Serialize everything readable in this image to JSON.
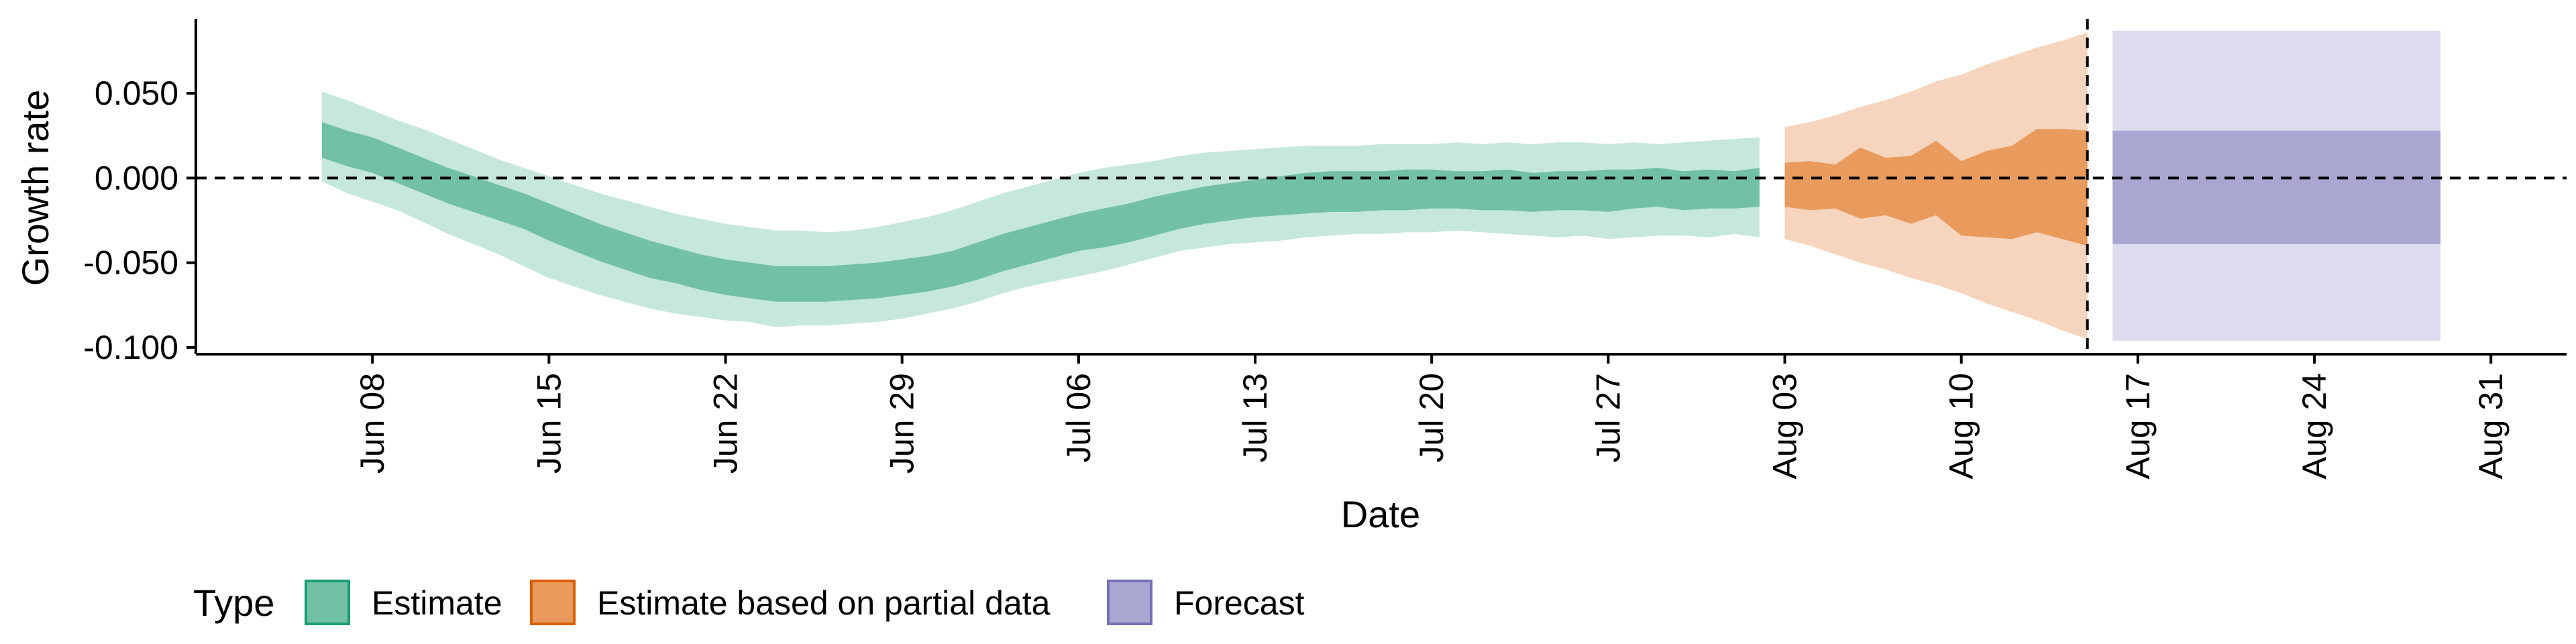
{
  "chart_data": {
    "type": "area",
    "title": "",
    "xlabel": "Date",
    "ylabel": "Growth rate",
    "x_range": [
      "2020-06-01",
      "2020-09-03"
    ],
    "y_range": [
      -0.104,
      0.094
    ],
    "x_ticks": [
      {
        "date": "2020-06-08",
        "label": "Jun 08"
      },
      {
        "date": "2020-06-15",
        "label": "Jun 15"
      },
      {
        "date": "2020-06-22",
        "label": "Jun 22"
      },
      {
        "date": "2020-06-29",
        "label": "Jun 29"
      },
      {
        "date": "2020-07-06",
        "label": "Jul 06"
      },
      {
        "date": "2020-07-13",
        "label": "Jul 13"
      },
      {
        "date": "2020-07-20",
        "label": "Jul 20"
      },
      {
        "date": "2020-07-27",
        "label": "Jul 27"
      },
      {
        "date": "2020-08-03",
        "label": "Aug 03"
      },
      {
        "date": "2020-08-10",
        "label": "Aug 10"
      },
      {
        "date": "2020-08-17",
        "label": "Aug 17"
      },
      {
        "date": "2020-08-24",
        "label": "Aug 24"
      },
      {
        "date": "2020-08-31",
        "label": "Aug 31"
      }
    ],
    "y_ticks": [
      {
        "value": 0.05,
        "label": "0.050"
      },
      {
        "value": 0.0,
        "label": "0.000"
      },
      {
        "value": -0.05,
        "label": "-0.050"
      },
      {
        "value": -0.1,
        "label": "-0.100"
      }
    ],
    "reference_lines": {
      "horizontal_y": 0.0,
      "vertical_date": "2020-08-15",
      "style": "dashed"
    },
    "grid": false,
    "legend": {
      "title": "Type",
      "position": "bottom",
      "entries": [
        {
          "label": "Estimate",
          "fill": "#72c1a5",
          "stroke": "#1b9e77"
        },
        {
          "label": "Estimate based on partial data",
          "fill": "#e99b5e",
          "stroke": "#d95f02"
        },
        {
          "label": "Forecast",
          "fill": "#a9a6d1",
          "stroke": "#7570b3"
        }
      ]
    },
    "series": [
      {
        "name": "Estimate",
        "outer_color": "#c6e7dc",
        "inner_color": "#72c1a5",
        "x": [
          "2020-06-06",
          "2020-06-07",
          "2020-06-08",
          "2020-06-09",
          "2020-06-10",
          "2020-06-11",
          "2020-06-12",
          "2020-06-13",
          "2020-06-14",
          "2020-06-15",
          "2020-06-16",
          "2020-06-17",
          "2020-06-18",
          "2020-06-19",
          "2020-06-20",
          "2020-06-21",
          "2020-06-22",
          "2020-06-23",
          "2020-06-24",
          "2020-06-25",
          "2020-06-26",
          "2020-06-27",
          "2020-06-28",
          "2020-06-29",
          "2020-06-30",
          "2020-07-01",
          "2020-07-02",
          "2020-07-03",
          "2020-07-04",
          "2020-07-05",
          "2020-07-06",
          "2020-07-07",
          "2020-07-08",
          "2020-07-09",
          "2020-07-10",
          "2020-07-11",
          "2020-07-12",
          "2020-07-13",
          "2020-07-14",
          "2020-07-15",
          "2020-07-16",
          "2020-07-17",
          "2020-07-18",
          "2020-07-19",
          "2020-07-20",
          "2020-07-21",
          "2020-07-22",
          "2020-07-23",
          "2020-07-24",
          "2020-07-25",
          "2020-07-26",
          "2020-07-27",
          "2020-07-28",
          "2020-07-29",
          "2020-07-30",
          "2020-07-31",
          "2020-08-01",
          "2020-08-02"
        ],
        "lower_90": [
          -0.002,
          -0.009,
          -0.014,
          -0.019,
          -0.026,
          -0.033,
          -0.039,
          -0.045,
          -0.052,
          -0.059,
          -0.064,
          -0.069,
          -0.073,
          -0.077,
          -0.08,
          -0.082,
          -0.084,
          -0.085,
          -0.088,
          -0.087,
          -0.087,
          -0.086,
          -0.085,
          -0.083,
          -0.08,
          -0.077,
          -0.073,
          -0.068,
          -0.064,
          -0.061,
          -0.058,
          -0.055,
          -0.051,
          -0.047,
          -0.043,
          -0.041,
          -0.039,
          -0.038,
          -0.037,
          -0.035,
          -0.034,
          -0.033,
          -0.033,
          -0.032,
          -0.032,
          -0.031,
          -0.032,
          -0.033,
          -0.034,
          -0.035,
          -0.034,
          -0.036,
          -0.035,
          -0.034,
          -0.034,
          -0.035,
          -0.033,
          -0.035
        ],
        "lower_50": [
          0.012,
          0.007,
          0.003,
          -0.003,
          -0.009,
          -0.015,
          -0.02,
          -0.025,
          -0.03,
          -0.037,
          -0.043,
          -0.049,
          -0.054,
          -0.059,
          -0.062,
          -0.066,
          -0.069,
          -0.071,
          -0.073,
          -0.073,
          -0.073,
          -0.072,
          -0.071,
          -0.069,
          -0.067,
          -0.064,
          -0.06,
          -0.055,
          -0.051,
          -0.047,
          -0.043,
          -0.041,
          -0.038,
          -0.034,
          -0.03,
          -0.027,
          -0.025,
          -0.023,
          -0.022,
          -0.021,
          -0.02,
          -0.02,
          -0.019,
          -0.019,
          -0.018,
          -0.018,
          -0.019,
          -0.019,
          -0.02,
          -0.019,
          -0.019,
          -0.02,
          -0.018,
          -0.017,
          -0.019,
          -0.018,
          -0.018,
          -0.017
        ],
        "upper_50": [
          0.033,
          0.028,
          0.024,
          0.018,
          0.012,
          0.006,
          0.001,
          -0.004,
          -0.009,
          -0.015,
          -0.021,
          -0.027,
          -0.032,
          -0.037,
          -0.041,
          -0.045,
          -0.048,
          -0.05,
          -0.052,
          -0.052,
          -0.052,
          -0.051,
          -0.05,
          -0.048,
          -0.046,
          -0.043,
          -0.038,
          -0.033,
          -0.029,
          -0.025,
          -0.021,
          -0.018,
          -0.015,
          -0.011,
          -0.008,
          -0.005,
          -0.003,
          -0.001,
          0.001,
          0.003,
          0.004,
          0.004,
          0.004,
          0.005,
          0.005,
          0.004,
          0.004,
          0.005,
          0.003,
          0.004,
          0.004,
          0.005,
          0.005,
          0.006,
          0.004,
          0.005,
          0.004,
          0.006
        ],
        "upper_90": [
          0.051,
          0.046,
          0.04,
          0.034,
          0.029,
          0.023,
          0.017,
          0.011,
          0.006,
          0.001,
          -0.004,
          -0.009,
          -0.013,
          -0.017,
          -0.021,
          -0.024,
          -0.027,
          -0.029,
          -0.031,
          -0.031,
          -0.032,
          -0.031,
          -0.029,
          -0.026,
          -0.023,
          -0.019,
          -0.014,
          -0.009,
          -0.005,
          -0.001,
          0.003,
          0.006,
          0.008,
          0.01,
          0.013,
          0.015,
          0.016,
          0.017,
          0.018,
          0.019,
          0.019,
          0.019,
          0.02,
          0.02,
          0.02,
          0.021,
          0.02,
          0.021,
          0.02,
          0.021,
          0.021,
          0.02,
          0.021,
          0.02,
          0.021,
          0.022,
          0.023,
          0.024
        ]
      },
      {
        "name": "Estimate based on partial data",
        "outer_color": "#f5d5bd",
        "inner_color": "#e99b5e",
        "x": [
          "2020-08-03",
          "2020-08-04",
          "2020-08-05",
          "2020-08-06",
          "2020-08-07",
          "2020-08-08",
          "2020-08-09",
          "2020-08-10",
          "2020-08-11",
          "2020-08-12",
          "2020-08-13",
          "2020-08-14",
          "2020-08-15"
        ],
        "lower_90": [
          -0.036,
          -0.04,
          -0.045,
          -0.05,
          -0.054,
          -0.059,
          -0.063,
          -0.068,
          -0.074,
          -0.079,
          -0.084,
          -0.09,
          -0.095
        ],
        "lower_50": [
          -0.017,
          -0.019,
          -0.018,
          -0.024,
          -0.022,
          -0.027,
          -0.022,
          -0.034,
          -0.035,
          -0.036,
          -0.032,
          -0.036,
          -0.04
        ],
        "upper_50": [
          0.009,
          0.01,
          0.008,
          0.018,
          0.012,
          0.013,
          0.022,
          0.01,
          0.016,
          0.019,
          0.029,
          0.029,
          0.028
        ],
        "upper_90": [
          0.03,
          0.033,
          0.037,
          0.042,
          0.046,
          0.051,
          0.057,
          0.061,
          0.067,
          0.072,
          0.077,
          0.081,
          0.086
        ]
      },
      {
        "name": "Forecast",
        "outer_color": "#dddcee",
        "inner_color": "#a9a6d1",
        "x": [
          "2020-08-16",
          "2020-08-29"
        ],
        "lower_90": [
          -0.096,
          -0.096
        ],
        "lower_50": [
          -0.039,
          -0.039
        ],
        "upper_50": [
          0.028,
          0.028
        ],
        "upper_90": [
          0.087,
          0.087
        ]
      }
    ]
  }
}
